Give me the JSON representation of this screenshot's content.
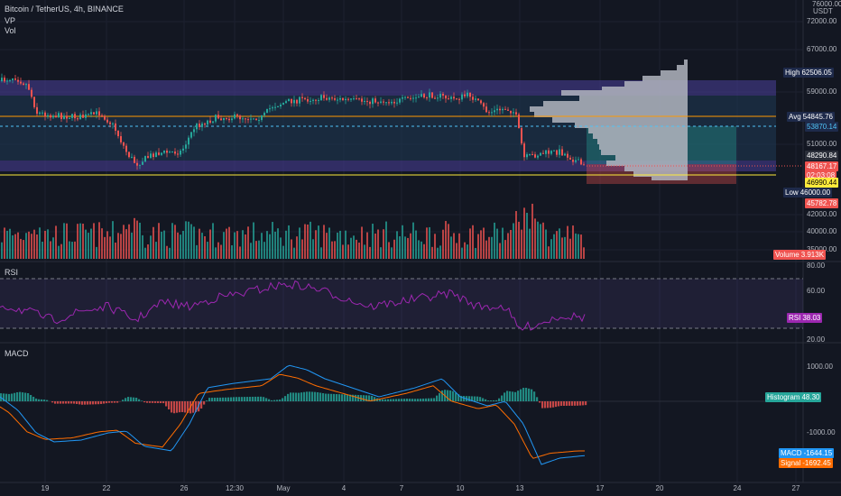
{
  "header": {
    "symbol_title": "Bitcoin / TetherUS, 4h, BINANCE",
    "indicator_vp": "VP",
    "indicator_vol": "Vol"
  },
  "currency": "USDT",
  "price_axis": {
    "labels": [
      "76000.00",
      "72000.00",
      "67000.00",
      "59000.00",
      "51000.00",
      "42000.00",
      "40000.00",
      "35000.00"
    ]
  },
  "level_tags": {
    "high": {
      "key": "High",
      "value": "62506.05",
      "color": "#1e2a4a",
      "text_color": "#ffffff"
    },
    "avg": {
      "key": "Avg",
      "value": "54845.76",
      "color": "#1e2a4a",
      "text_color": "#ffffff"
    },
    "poc": {
      "value": "53870.14",
      "color": "#1e2a4a",
      "text_color": "#4fc3f7"
    },
    "vah": {
      "value": "48290.84",
      "color": "#2a2e39",
      "text_color": "#ffffff"
    },
    "last": {
      "value": "48167.17",
      "countdown": "02:03:08",
      "color": "#ef5350",
      "text_color": "#ffffff"
    },
    "yellow": {
      "value": "46990.44",
      "color": "#ffeb3b",
      "text_color": "#000000"
    },
    "low": {
      "key": "Low",
      "value": "46000.00",
      "color": "#1e2a4a",
      "text_color": "#ffffff"
    },
    "val": {
      "value": "45782.78",
      "color": "#ef5350",
      "text_color": "#ffffff"
    },
    "volume": {
      "key": "Volume",
      "value": "3.913K",
      "color": "#ef5350",
      "text_color": "#ffffff"
    }
  },
  "rsi": {
    "title": "RSI",
    "axis": [
      "80.00",
      "60.00",
      "20.00"
    ],
    "tag_key": "RSI",
    "tag_value": "38.03",
    "line_color": "#9c27b0"
  },
  "macd": {
    "title": "MACD",
    "axis": [
      "1000.00",
      "-1000.00"
    ],
    "histogram": {
      "key": "Histogram",
      "value": "48.30",
      "color": "#26a69a"
    },
    "macd_line": {
      "key": "MACD",
      "value": "-1644.15",
      "color": "#2196f3"
    },
    "signal_line": {
      "key": "Signal",
      "value": "-1692.45",
      "color": "#ff6d00"
    }
  },
  "time_axis": [
    "19",
    "22",
    "26",
    "12:30",
    "May",
    "4",
    "7",
    "10",
    "13",
    "17",
    "20",
    "24",
    "27"
  ],
  "colors": {
    "bg": "#131722",
    "up": "#26a69a",
    "down": "#ef5350",
    "orange": "#ff9800",
    "blue_band": "#5c6bc0",
    "vp_fill": "#b2b5be"
  }
}
